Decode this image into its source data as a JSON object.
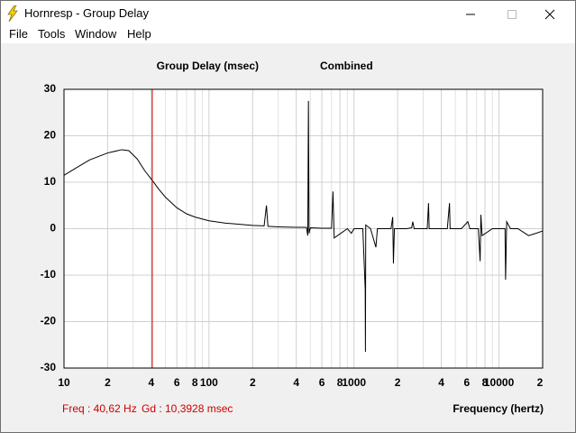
{
  "window": {
    "title": "Hornresp - Group Delay",
    "menu": [
      "File",
      "Tools",
      "Window",
      "Help"
    ]
  },
  "chart_data": {
    "type": "line",
    "title": "Group Delay (msec)",
    "subtitle": "Combined",
    "x_label": "Frequency (hertz)",
    "xscale": "log",
    "grid": true,
    "xlim": [
      10,
      20000
    ],
    "ylim": [
      -30,
      30
    ],
    "yticks": [
      -30,
      -20,
      -10,
      0,
      10,
      20,
      30
    ],
    "xticks": [
      10,
      {
        "value": 20,
        "label": "2"
      },
      {
        "value": 40,
        "label": "4"
      },
      {
        "value": 60,
        "label": "6"
      },
      {
        "value": 80,
        "label": "8"
      },
      100,
      {
        "value": 200,
        "label": "2"
      },
      {
        "value": 400,
        "label": "4"
      },
      {
        "value": 600,
        "label": "6"
      },
      {
        "value": 800,
        "label": "8"
      },
      1000,
      {
        "value": 2000,
        "label": "2"
      },
      {
        "value": 4000,
        "label": "4"
      },
      {
        "value": 6000,
        "label": "6"
      },
      {
        "value": 8000,
        "label": "8"
      },
      10000,
      {
        "value": 20000,
        "label": "2"
      }
    ],
    "xminorticks": [
      30,
      50,
      70,
      90,
      300,
      500,
      700,
      900,
      3000,
      5000,
      7000,
      9000
    ],
    "series": [
      {
        "name": "Combined",
        "color": "#000000",
        "x": [
          10,
          12,
          15,
          20,
          25,
          28,
          32,
          36,
          40.62,
          45,
          50,
          60,
          70,
          80,
          100,
          130,
          200,
          240,
          249,
          255,
          300,
          400,
          470,
          480,
          485,
          490,
          500,
          600,
          700,
          716,
          730,
          900,
          959,
          1000,
          1150,
          1195,
          1199,
          1205,
          1300,
          1416,
          1450,
          1800,
          1850,
          1870,
          1900,
          2300,
          2500,
          2541,
          2600,
          3200,
          3266,
          3300,
          4400,
          4557,
          4600,
          5500,
          6096,
          6300,
          7200,
          7413,
          7500,
          7650,
          9000,
          11000,
          11100,
          11300,
          12000,
          13500,
          16000,
          18000,
          20000
        ],
        "values": [
          11.5,
          13,
          14.8,
          16.3,
          17,
          16.8,
          15,
          12.5,
          10.4,
          8.5,
          6.8,
          4.5,
          3.2,
          2.5,
          1.7,
          1.2,
          0.7,
          0.6,
          5,
          0.5,
          0.4,
          0.3,
          0.3,
          -1.5,
          27.5,
          -1,
          0.2,
          0.1,
          0.1,
          8,
          -2,
          0,
          -1,
          0,
          0,
          -13,
          -26.5,
          0.8,
          0,
          -4,
          0,
          0,
          2.5,
          -7.5,
          0,
          0,
          0.2,
          1.5,
          0,
          0,
          5.5,
          0,
          0,
          5.5,
          0,
          0,
          1.5,
          0,
          0,
          -7,
          3,
          -1.5,
          0,
          0,
          -11,
          1.5,
          0,
          0,
          -1.5,
          -1,
          -0.5
        ]
      }
    ],
    "cursor": {
      "x": 40.62,
      "color": "#cc0000"
    },
    "status": {
      "freq": "Freq : 40,62 Hz",
      "gd": "Gd : 10,3928 msec"
    }
  }
}
